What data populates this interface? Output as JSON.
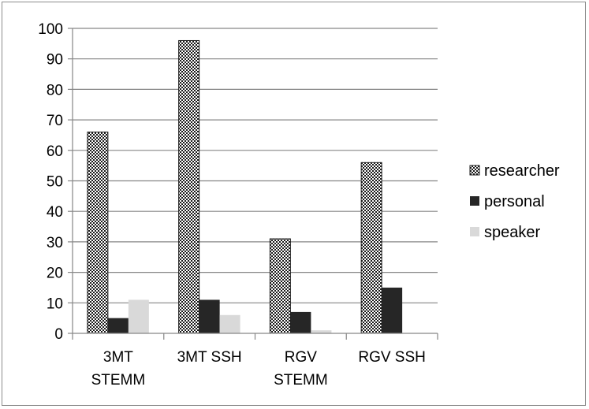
{
  "chart_data": {
    "type": "bar",
    "categories": [
      [
        "3MT",
        "STEMM"
      ],
      [
        "3MT SSH"
      ],
      [
        "RGV",
        "STEMM"
      ],
      [
        "RGV SSH"
      ]
    ],
    "series": [
      {
        "name": "researcher",
        "values": [
          66,
          96,
          31,
          56
        ],
        "color": "#1a1a1a",
        "pattern": "checkerboard"
      },
      {
        "name": "personal",
        "values": [
          5,
          11,
          7,
          15
        ],
        "color": "#262626",
        "pattern": "solid"
      },
      {
        "name": "speaker",
        "values": [
          11,
          6,
          1,
          0
        ],
        "color": "#d9d9d9",
        "pattern": "solid"
      }
    ],
    "ylim": [
      0,
      100
    ],
    "yticks": [
      0,
      10,
      20,
      30,
      40,
      50,
      60,
      70,
      80,
      90,
      100
    ],
    "grid": true,
    "legend_position": "right",
    "title": "",
    "xlabel": "",
    "ylabel": ""
  }
}
